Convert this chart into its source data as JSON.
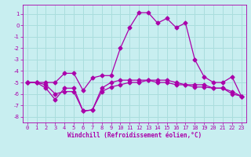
{
  "xlabel": "Windchill (Refroidissement éolien,°C)",
  "ylabel": "",
  "xlim": [
    -0.5,
    23.5
  ],
  "ylim": [
    -8.5,
    1.8
  ],
  "yticks": [
    1,
    0,
    -1,
    -2,
    -3,
    -4,
    -5,
    -6,
    -7,
    -8
  ],
  "xticks": [
    0,
    1,
    2,
    3,
    4,
    5,
    6,
    7,
    8,
    9,
    10,
    11,
    12,
    13,
    14,
    15,
    16,
    17,
    18,
    19,
    20,
    21,
    22,
    23
  ],
  "bg_color": "#c8eef0",
  "grid_color": "#aadddd",
  "line_color": "#aa00aa",
  "line1_x": [
    0,
    1,
    2,
    3,
    4,
    5,
    6,
    7,
    8,
    9,
    10,
    11,
    12,
    13,
    14,
    15,
    16,
    17,
    18,
    19,
    20,
    21,
    22,
    23
  ],
  "line1_y": [
    -5.0,
    -5.0,
    -5.0,
    -5.0,
    -4.2,
    -4.2,
    -5.7,
    -4.6,
    -4.4,
    -4.4,
    -2.0,
    -0.2,
    1.1,
    1.1,
    0.2,
    0.6,
    -0.2,
    0.2,
    -3.0,
    -4.5,
    -5.0,
    -5.0,
    -4.5,
    -6.2
  ],
  "line2_x": [
    0,
    1,
    2,
    3,
    4,
    5,
    6,
    7,
    8,
    9,
    10,
    11,
    12,
    13,
    14,
    15,
    16,
    17,
    18,
    19,
    20,
    21,
    22,
    23
  ],
  "line2_y": [
    -5.0,
    -5.0,
    -5.5,
    -6.5,
    -5.5,
    -5.5,
    -7.5,
    -7.4,
    -5.5,
    -5.0,
    -4.8,
    -4.8,
    -4.8,
    -4.8,
    -4.8,
    -4.8,
    -5.0,
    -5.2,
    -5.2,
    -5.2,
    -5.5,
    -5.5,
    -6.0,
    -6.2
  ],
  "line3_x": [
    0,
    1,
    2,
    3,
    4,
    5,
    6,
    7,
    8,
    9,
    10,
    11,
    12,
    13,
    14,
    15,
    16,
    17,
    18,
    19,
    20,
    21,
    22,
    23
  ],
  "line3_y": [
    -5.0,
    -5.0,
    -5.2,
    -6.0,
    -5.8,
    -5.8,
    -7.5,
    -7.4,
    -5.8,
    -5.4,
    -5.2,
    -5.0,
    -5.0,
    -4.8,
    -5.0,
    -5.0,
    -5.2,
    -5.2,
    -5.4,
    -5.4,
    -5.5,
    -5.5,
    -5.8,
    -6.2
  ]
}
